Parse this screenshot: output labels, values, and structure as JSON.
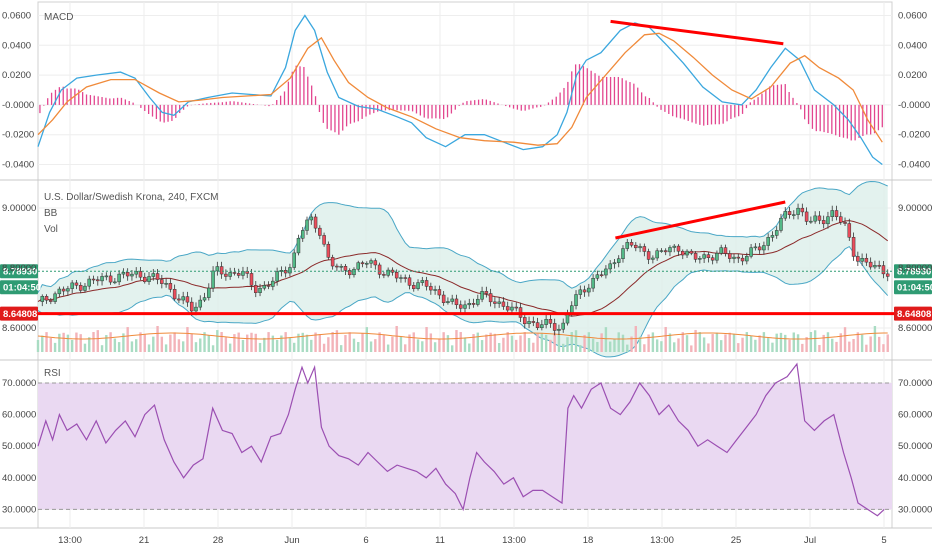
{
  "chart_data": [
    {
      "type": "line",
      "panel": "MACD",
      "title": "MACD",
      "yticks": [
        "0.0600",
        "0.0400",
        "0.0200",
        "-0.0000",
        "-0.0200",
        "-0.0400"
      ],
      "ylim": [
        -0.045,
        0.065
      ],
      "series": [
        {
          "key": "macd",
          "color": "#3ba7de",
          "values": [
            [
              0,
              -0.028
            ],
            [
              12,
              -0.005
            ],
            [
              24,
              0.01
            ],
            [
              40,
              0.018
            ],
            [
              60,
              0.02
            ],
            [
              85,
              0.022
            ],
            [
              100,
              0.018
            ],
            [
              115,
              0.005
            ],
            [
              128,
              -0.005
            ],
            [
              140,
              -0.007
            ],
            [
              155,
              0.002
            ],
            [
              175,
              0.005
            ],
            [
              200,
              0.008
            ],
            [
              220,
              0.007
            ],
            [
              240,
              0.006
            ],
            [
              255,
              0.025
            ],
            [
              265,
              0.05
            ],
            [
              275,
              0.06
            ],
            [
              285,
              0.05
            ],
            [
              298,
              0.022
            ],
            [
              310,
              0.005
            ],
            [
              330,
              -0.001
            ],
            [
              350,
              -0.003
            ],
            [
              370,
              -0.008
            ],
            [
              385,
              -0.012
            ],
            [
              400,
              -0.022
            ],
            [
              420,
              -0.028
            ],
            [
              440,
              -0.02
            ],
            [
              460,
              -0.02
            ],
            [
              480,
              -0.025
            ],
            [
              500,
              -0.03
            ],
            [
              520,
              -0.028
            ],
            [
              535,
              -0.02
            ],
            [
              545,
              -0.005
            ],
            [
              555,
              0.02
            ],
            [
              565,
              0.03
            ],
            [
              580,
              0.035
            ],
            [
              600,
              0.05
            ],
            [
              615,
              0.055
            ],
            [
              630,
              0.052
            ],
            [
              648,
              0.04
            ],
            [
              665,
              0.028
            ],
            [
              685,
              0.012
            ],
            [
              705,
              0.002
            ],
            [
              725,
              0.0
            ],
            [
              740,
              0.01
            ],
            [
              755,
              0.025
            ],
            [
              770,
              0.038
            ],
            [
              785,
              0.03
            ],
            [
              800,
              0.01
            ],
            [
              820,
              0.0
            ],
            [
              835,
              -0.01
            ],
            [
              848,
              -0.022
            ],
            [
              860,
              -0.035
            ],
            [
              870,
              -0.04
            ]
          ]
        },
        {
          "key": "signal",
          "color": "#f08a3a",
          "values": [
            [
              0,
              -0.02
            ],
            [
              15,
              -0.01
            ],
            [
              30,
              0.002
            ],
            [
              50,
              0.012
            ],
            [
              75,
              0.017
            ],
            [
              100,
              0.017
            ],
            [
              125,
              0.008
            ],
            [
              145,
              0.002
            ],
            [
              165,
              0.003
            ],
            [
              190,
              0.005
            ],
            [
              215,
              0.006
            ],
            [
              240,
              0.007
            ],
            [
              260,
              0.018
            ],
            [
              278,
              0.038
            ],
            [
              292,
              0.045
            ],
            [
              305,
              0.03
            ],
            [
              320,
              0.015
            ],
            [
              340,
              0.005
            ],
            [
              360,
              -0.002
            ],
            [
              385,
              -0.008
            ],
            [
              410,
              -0.016
            ],
            [
              435,
              -0.022
            ],
            [
              460,
              -0.024
            ],
            [
              490,
              -0.025
            ],
            [
              515,
              -0.027
            ],
            [
              535,
              -0.026
            ],
            [
              550,
              -0.015
            ],
            [
              565,
              0.005
            ],
            [
              585,
              0.02
            ],
            [
              605,
              0.035
            ],
            [
              625,
              0.047
            ],
            [
              640,
              0.048
            ],
            [
              655,
              0.043
            ],
            [
              675,
              0.032
            ],
            [
              695,
              0.02
            ],
            [
              715,
              0.01
            ],
            [
              735,
              0.004
            ],
            [
              755,
              0.012
            ],
            [
              775,
              0.028
            ],
            [
              790,
              0.033
            ],
            [
              805,
              0.025
            ],
            [
              825,
              0.018
            ],
            [
              840,
              0.01
            ],
            [
              855,
              -0.01
            ],
            [
              870,
              -0.025
            ]
          ]
        }
      ],
      "histogram_color": "#e2468f"
    },
    {
      "type": "candlestick",
      "panel": "price",
      "title": "U.S. Dollar/Swedish Krona, 240, FXCM",
      "legend": [
        "BB",
        "Vol"
      ],
      "yticks": [
        "9.00000",
        "8.80000",
        "8.60000"
      ],
      "ylim": [
        8.52,
        9.08
      ],
      "last_price": "8.78930",
      "countdown": "01:04:50",
      "support_level": "8.64808",
      "up_color": "#53b987",
      "down_color": "#eb4d5c",
      "bb_fill": "#dcefea",
      "bb_line": "#4aa7c6",
      "bb_basis": "#8b2a2a",
      "trend_color": "#ff0000",
      "close_path": [
        [
          0,
          8.68
        ],
        [
          20,
          8.72
        ],
        [
          40,
          8.74
        ],
        [
          60,
          8.76
        ],
        [
          80,
          8.77
        ],
        [
          100,
          8.78
        ],
        [
          115,
          8.77
        ],
        [
          130,
          8.75
        ],
        [
          145,
          8.7
        ],
        [
          160,
          8.66
        ],
        [
          170,
          8.7
        ],
        [
          182,
          8.79
        ],
        [
          195,
          8.78
        ],
        [
          210,
          8.79
        ],
        [
          222,
          8.73
        ],
        [
          235,
          8.74
        ],
        [
          250,
          8.78
        ],
        [
          262,
          8.82
        ],
        [
          270,
          8.92
        ],
        [
          280,
          8.96
        ],
        [
          290,
          8.93
        ],
        [
          300,
          8.82
        ],
        [
          312,
          8.79
        ],
        [
          325,
          8.8
        ],
        [
          340,
          8.82
        ],
        [
          355,
          8.79
        ],
        [
          370,
          8.77
        ],
        [
          385,
          8.75
        ],
        [
          400,
          8.74
        ],
        [
          415,
          8.71
        ],
        [
          430,
          8.67
        ],
        [
          445,
          8.68
        ],
        [
          455,
          8.71
        ],
        [
          470,
          8.69
        ],
        [
          485,
          8.67
        ],
        [
          500,
          8.63
        ],
        [
          515,
          8.61
        ],
        [
          530,
          8.61
        ],
        [
          540,
          8.6
        ],
        [
          548,
          8.67
        ],
        [
          555,
          8.7
        ],
        [
          565,
          8.74
        ],
        [
          575,
          8.77
        ],
        [
          590,
          8.8
        ],
        [
          600,
          8.86
        ],
        [
          610,
          8.88
        ],
        [
          620,
          8.86
        ],
        [
          635,
          8.84
        ],
        [
          648,
          8.86
        ],
        [
          660,
          8.87
        ],
        [
          675,
          8.83
        ],
        [
          690,
          8.84
        ],
        [
          705,
          8.85
        ],
        [
          720,
          8.83
        ],
        [
          735,
          8.85
        ],
        [
          748,
          8.88
        ],
        [
          760,
          8.93
        ],
        [
          772,
          8.98
        ],
        [
          785,
          9.0
        ],
        [
          795,
          8.95
        ],
        [
          808,
          8.96
        ],
        [
          820,
          8.99
        ],
        [
          832,
          8.93
        ],
        [
          842,
          8.84
        ],
        [
          852,
          8.82
        ],
        [
          862,
          8.8
        ],
        [
          872,
          8.79
        ]
      ]
    },
    {
      "type": "line",
      "panel": "RSI",
      "title": "RSI",
      "yticks": [
        "70.0000",
        "60.0000",
        "50.0000",
        "40.0000",
        "30.0000"
      ],
      "ylim": [
        26,
        76
      ],
      "band": [
        30,
        70
      ],
      "band_fill": "#ead9f2",
      "line_color": "#9b4fb2",
      "values": [
        [
          0,
          50
        ],
        [
          8,
          58
        ],
        [
          15,
          52
        ],
        [
          22,
          60
        ],
        [
          30,
          55
        ],
        [
          40,
          57
        ],
        [
          50,
          52
        ],
        [
          60,
          58
        ],
        [
          70,
          51
        ],
        [
          80,
          55
        ],
        [
          90,
          58
        ],
        [
          100,
          53
        ],
        [
          110,
          60
        ],
        [
          120,
          63
        ],
        [
          130,
          52
        ],
        [
          140,
          45
        ],
        [
          150,
          40
        ],
        [
          160,
          44
        ],
        [
          170,
          46
        ],
        [
          180,
          62
        ],
        [
          190,
          55
        ],
        [
          200,
          54
        ],
        [
          210,
          48
        ],
        [
          220,
          50
        ],
        [
          230,
          45
        ],
        [
          240,
          53
        ],
        [
          250,
          54
        ],
        [
          258,
          60
        ],
        [
          265,
          68
        ],
        [
          272,
          75
        ],
        [
          278,
          70
        ],
        [
          285,
          75
        ],
        [
          292,
          56
        ],
        [
          300,
          50
        ],
        [
          310,
          47
        ],
        [
          320,
          46
        ],
        [
          330,
          44
        ],
        [
          340,
          48
        ],
        [
          350,
          45
        ],
        [
          360,
          42
        ],
        [
          370,
          44
        ],
        [
          380,
          43
        ],
        [
          390,
          42
        ],
        [
          400,
          40
        ],
        [
          410,
          43
        ],
        [
          420,
          38
        ],
        [
          430,
          35
        ],
        [
          438,
          30
        ],
        [
          445,
          40
        ],
        [
          452,
          48
        ],
        [
          460,
          45
        ],
        [
          470,
          42
        ],
        [
          480,
          38
        ],
        [
          490,
          40
        ],
        [
          500,
          34
        ],
        [
          510,
          36
        ],
        [
          520,
          36
        ],
        [
          530,
          34
        ],
        [
          540,
          32
        ],
        [
          546,
          62
        ],
        [
          552,
          66
        ],
        [
          560,
          62
        ],
        [
          570,
          68
        ],
        [
          580,
          70
        ],
        [
          590,
          62
        ],
        [
          600,
          60
        ],
        [
          610,
          64
        ],
        [
          620,
          70
        ],
        [
          630,
          66
        ],
        [
          640,
          60
        ],
        [
          650,
          63
        ],
        [
          660,
          58
        ],
        [
          670,
          55
        ],
        [
          680,
          50
        ],
        [
          690,
          52
        ],
        [
          700,
          50
        ],
        [
          710,
          48
        ],
        [
          720,
          52
        ],
        [
          730,
          56
        ],
        [
          740,
          60
        ],
        [
          750,
          66
        ],
        [
          760,
          70
        ],
        [
          772,
          72
        ],
        [
          782,
          76
        ],
        [
          790,
          58
        ],
        [
          800,
          55
        ],
        [
          810,
          58
        ],
        [
          820,
          60
        ],
        [
          830,
          48
        ],
        [
          838,
          40
        ],
        [
          845,
          32
        ],
        [
          855,
          30
        ],
        [
          865,
          28
        ],
        [
          872,
          30
        ]
      ]
    },
    {
      "x_ticks": [
        "13:00",
        "21",
        "28",
        "Jun",
        "6",
        "11",
        "13:00",
        "18",
        "13:00",
        "25",
        "Jul",
        "5"
      ]
    }
  ]
}
